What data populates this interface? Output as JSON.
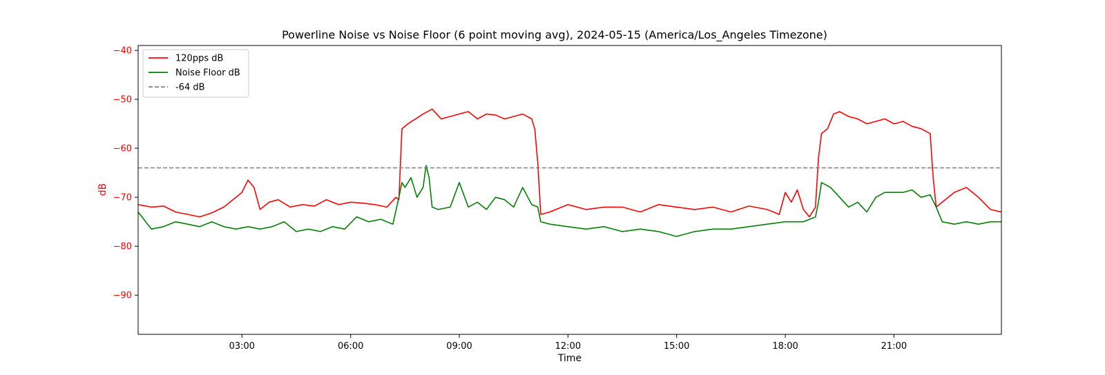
{
  "chart_data": {
    "type": "line",
    "title": "Powerline Noise vs Noise Floor (6 point moving avg), 2024-05-15 (America/Los_Angeles Timezone)",
    "xlabel": "Time",
    "ylabel": "dB",
    "ylabel_color": "#ff0000",
    "ytick_color": "#ff0000",
    "xlim": [
      "00:08",
      "23:58"
    ],
    "ylim": [
      -98,
      -39
    ],
    "xticks": [
      "03:00",
      "06:00",
      "09:00",
      "12:00",
      "15:00",
      "18:00",
      "21:00"
    ],
    "yticks": [
      -40,
      -50,
      -60,
      -70,
      -80,
      -90
    ],
    "ytick_labels": [
      "−40",
      "−50",
      "−60",
      "−70",
      "−80",
      "−90"
    ],
    "grid": false,
    "legend_position": "upper-left",
    "series": [
      {
        "name": "120pps dB",
        "color": "#ff0000",
        "style": "solid",
        "x": [
          "00:08",
          "00:30",
          "00:50",
          "01:10",
          "01:30",
          "01:50",
          "02:10",
          "02:30",
          "02:50",
          "03:00",
          "03:10",
          "03:20",
          "03:30",
          "03:45",
          "04:00",
          "04:20",
          "04:40",
          "05:00",
          "05:20",
          "05:40",
          "06:00",
          "06:20",
          "06:40",
          "07:00",
          "07:15",
          "07:20",
          "07:25",
          "07:35",
          "08:00",
          "08:15",
          "08:30",
          "08:45",
          "09:00",
          "09:15",
          "09:30",
          "09:45",
          "10:00",
          "10:15",
          "10:30",
          "10:45",
          "11:00",
          "11:05",
          "11:10",
          "11:15",
          "11:30",
          "12:00",
          "12:30",
          "13:00",
          "13:30",
          "14:00",
          "14:30",
          "15:00",
          "15:30",
          "16:00",
          "16:30",
          "17:00",
          "17:30",
          "17:50",
          "18:00",
          "18:10",
          "18:20",
          "18:30",
          "18:40",
          "18:50",
          "18:55",
          "19:00",
          "19:10",
          "19:20",
          "19:30",
          "19:45",
          "20:00",
          "20:15",
          "20:30",
          "20:45",
          "21:00",
          "21:15",
          "21:30",
          "21:45",
          "22:00",
          "22:05",
          "22:10",
          "22:20",
          "22:40",
          "23:00",
          "23:20",
          "23:40",
          "23:58"
        ],
        "values": [
          -71.5,
          -72,
          -71.8,
          -73,
          -73.5,
          -74,
          -73.2,
          -72,
          -70,
          -69,
          -66.5,
          -68,
          -72.5,
          -71,
          -70.5,
          -72,
          -71.5,
          -71.8,
          -70.5,
          -71.5,
          -71,
          -71.2,
          -71.5,
          -72,
          -70,
          -70.5,
          -56,
          -55,
          -53,
          -52,
          -54,
          -53.5,
          -53,
          -52.5,
          -54,
          -53,
          -53.2,
          -54,
          -53.5,
          -53,
          -54,
          -56,
          -63,
          -73.5,
          -73,
          -71.5,
          -72.5,
          -72,
          -72,
          -73,
          -71.5,
          -72,
          -72.5,
          -72,
          -73,
          -71.8,
          -72.5,
          -73.5,
          -69,
          -71,
          -68.5,
          -72.5,
          -74,
          -72,
          -62,
          -57,
          -56,
          -53,
          -52.5,
          -53.5,
          -54,
          -55,
          -54.5,
          -54,
          -55,
          -54.5,
          -55.5,
          -56,
          -57,
          -66,
          -72,
          -71,
          -69,
          -68,
          -70,
          -72.5,
          -73
        ]
      },
      {
        "name": "Noise Floor dB",
        "color": "#008000",
        "style": "solid",
        "x": [
          "00:08",
          "00:30",
          "00:50",
          "01:10",
          "01:30",
          "01:50",
          "02:10",
          "02:30",
          "02:50",
          "03:10",
          "03:30",
          "03:50",
          "04:10",
          "04:30",
          "04:50",
          "05:10",
          "05:30",
          "05:50",
          "06:10",
          "06:30",
          "06:50",
          "07:10",
          "07:20",
          "07:25",
          "07:30",
          "07:40",
          "07:50",
          "08:00",
          "08:05",
          "08:10",
          "08:15",
          "08:25",
          "08:45",
          "09:00",
          "09:15",
          "09:30",
          "09:45",
          "10:00",
          "10:15",
          "10:30",
          "10:45",
          "11:00",
          "11:10",
          "11:15",
          "11:30",
          "12:00",
          "12:30",
          "13:00",
          "13:30",
          "14:00",
          "14:30",
          "15:00",
          "15:30",
          "16:00",
          "16:30",
          "17:00",
          "17:30",
          "18:00",
          "18:30",
          "18:50",
          "18:55",
          "19:00",
          "19:15",
          "19:30",
          "19:45",
          "20:00",
          "20:15",
          "20:30",
          "20:45",
          "21:00",
          "21:15",
          "21:30",
          "21:45",
          "22:00",
          "22:10",
          "22:20",
          "22:40",
          "23:00",
          "23:20",
          "23:40",
          "23:58"
        ],
        "values": [
          -73,
          -76.5,
          -76,
          -75,
          -75.5,
          -76,
          -75,
          -76,
          -76.5,
          -76,
          -76.5,
          -76,
          -75,
          -77,
          -76.5,
          -77,
          -76,
          -76.5,
          -74,
          -75,
          -74.5,
          -75.5,
          -70,
          -67,
          -68,
          -66,
          -70,
          -68,
          -63.5,
          -66,
          -72,
          -72.5,
          -72,
          -67,
          -72,
          -71,
          -72.5,
          -70,
          -70.5,
          -72,
          -68,
          -71.5,
          -72,
          -75,
          -75.5,
          -76,
          -76.5,
          -76,
          -77,
          -76.5,
          -77,
          -78,
          -77,
          -76.5,
          -76.5,
          -76,
          -75.5,
          -75,
          -75,
          -74,
          -71,
          -67,
          -68,
          -70,
          -72,
          -71,
          -73,
          -70,
          -69,
          -69,
          -69,
          -68.5,
          -70,
          -69.5,
          -72,
          -75,
          -75.5,
          -75,
          -75.5,
          -75,
          -75
        ]
      },
      {
        "name": "-64 dB",
        "color": "#808080",
        "style": "dashed",
        "x": [
          "00:08",
          "23:58"
        ],
        "values": [
          -64,
          -64
        ]
      }
    ]
  }
}
